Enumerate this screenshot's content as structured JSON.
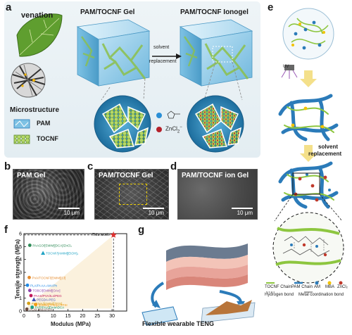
{
  "panels": {
    "a": "a",
    "b": "b",
    "c": "c",
    "d": "d",
    "e": "e",
    "f": "f",
    "g": "g"
  },
  "panel_a": {
    "venation": "venation",
    "gel_title": "PAM/TOCNF Gel",
    "ionogel_title": "PAM/TOCNF Ionogel",
    "arrow_top": "solvent",
    "arrow_bottom": "replacement",
    "microstructure": "Microstructure",
    "legend_pam": "PAM",
    "legend_tocnf": "TOCNF",
    "legend_zncl": "ZnCl",
    "legend_zncl_sub": "2",
    "legend_zncl_sup": "−"
  },
  "sem": {
    "b_title": "PAM Gel",
    "c_title": "PAM/TOCNF Gel",
    "d_title": "PAM/TOCNF ion Gel",
    "scale": "10 μm"
  },
  "panel_e": {
    "uv": "UV",
    "solvent_1": "solvent",
    "solvent_2": "replacement",
    "legend": [
      {
        "label": "TOCNF Chain",
        "color": "#8dc63f"
      },
      {
        "label": "PAM Chain",
        "color": "#2b7bb9"
      },
      {
        "label": "AM",
        "color": "#2b7bb9"
      },
      {
        "label": "MBA",
        "color": "#f2c200"
      },
      {
        "label": "ZnCl₂",
        "color": "#c0392b"
      },
      {
        "label": "Hydrogen bond",
        "color": "#555555"
      },
      {
        "label": "Metal coordination bond",
        "color": "#555555"
      }
    ]
  },
  "panel_f": {
    "ylabel": "Tensile strength (MPa)",
    "xlabel": "Modulus (MPa)",
    "this_work": "This work"
  },
  "panel_g": {
    "caption": "Flexible wearable TENG"
  },
  "chart_data": {
    "type": "scatter",
    "xlabel": "Modulus (MPa)",
    "ylabel": "Tensile strength (MPa)",
    "xlim": [
      0,
      35
    ],
    "ylim": [
      0,
      6
    ],
    "xticks": [
      0,
      5,
      10,
      15,
      20,
      25,
      30
    ],
    "yticks": [
      0,
      1,
      2,
      3,
      4,
      5,
      6
    ],
    "points": [
      {
        "label": "This work",
        "x": 30.5,
        "y": 5.9,
        "color": "#e0312f",
        "marker": "star"
      },
      {
        "label": "PAAGO/[EMIM][DCA]/ZnCl₂",
        "x": 2.0,
        "y": 5.1,
        "color": "#2e8b57",
        "marker": "circle"
      },
      {
        "label": "TOCNF/[AMIM][EtOH]₂",
        "x": 6.5,
        "y": 4.5,
        "color": "#1fa3c4",
        "marker": "triangle"
      },
      {
        "label": "PVA/TOCNF/[EMIM][Cl]",
        "x": 1.8,
        "y": 2.6,
        "color": "#e58a2b",
        "marker": "circle"
      },
      {
        "label": "PLA/PI-AA-AM-IPh",
        "x": 1.2,
        "y": 2.0,
        "color": "#1e88e5",
        "marker": "circle"
      },
      {
        "label": "TOBC/[EMIM][OAc]",
        "x": 2.0,
        "y": 1.6,
        "color": "#8e44ad",
        "marker": "circle"
      },
      {
        "label": "PAAS/PVA/ILs/PEG",
        "x": 2.4,
        "y": 1.2,
        "color": "#c2185b",
        "marker": "circle"
      },
      {
        "label": "PEGDA-PEG",
        "x": 3.4,
        "y": 0.9,
        "color": "#3f51b5",
        "marker": "triangle"
      },
      {
        "label": "PHEMA/[EMIM][TFSI]",
        "x": 1.6,
        "y": 0.6,
        "color": "#d4a017",
        "marker": "circle"
      },
      {
        "label": "[EMIM][TFSI]/LiTFSI",
        "x": 4.0,
        "y": 0.5,
        "color": "#f39c12",
        "marker": "circle"
      },
      {
        "label": "PVP/PAA/EmImDCA",
        "x": 2.8,
        "y": 0.3,
        "color": "#16a085",
        "marker": "circle"
      },
      {
        "label": "PCM-MMA/HPA",
        "x": 1.0,
        "y": 0.15,
        "color": "#6d4c41",
        "marker": "circle"
      }
    ]
  }
}
